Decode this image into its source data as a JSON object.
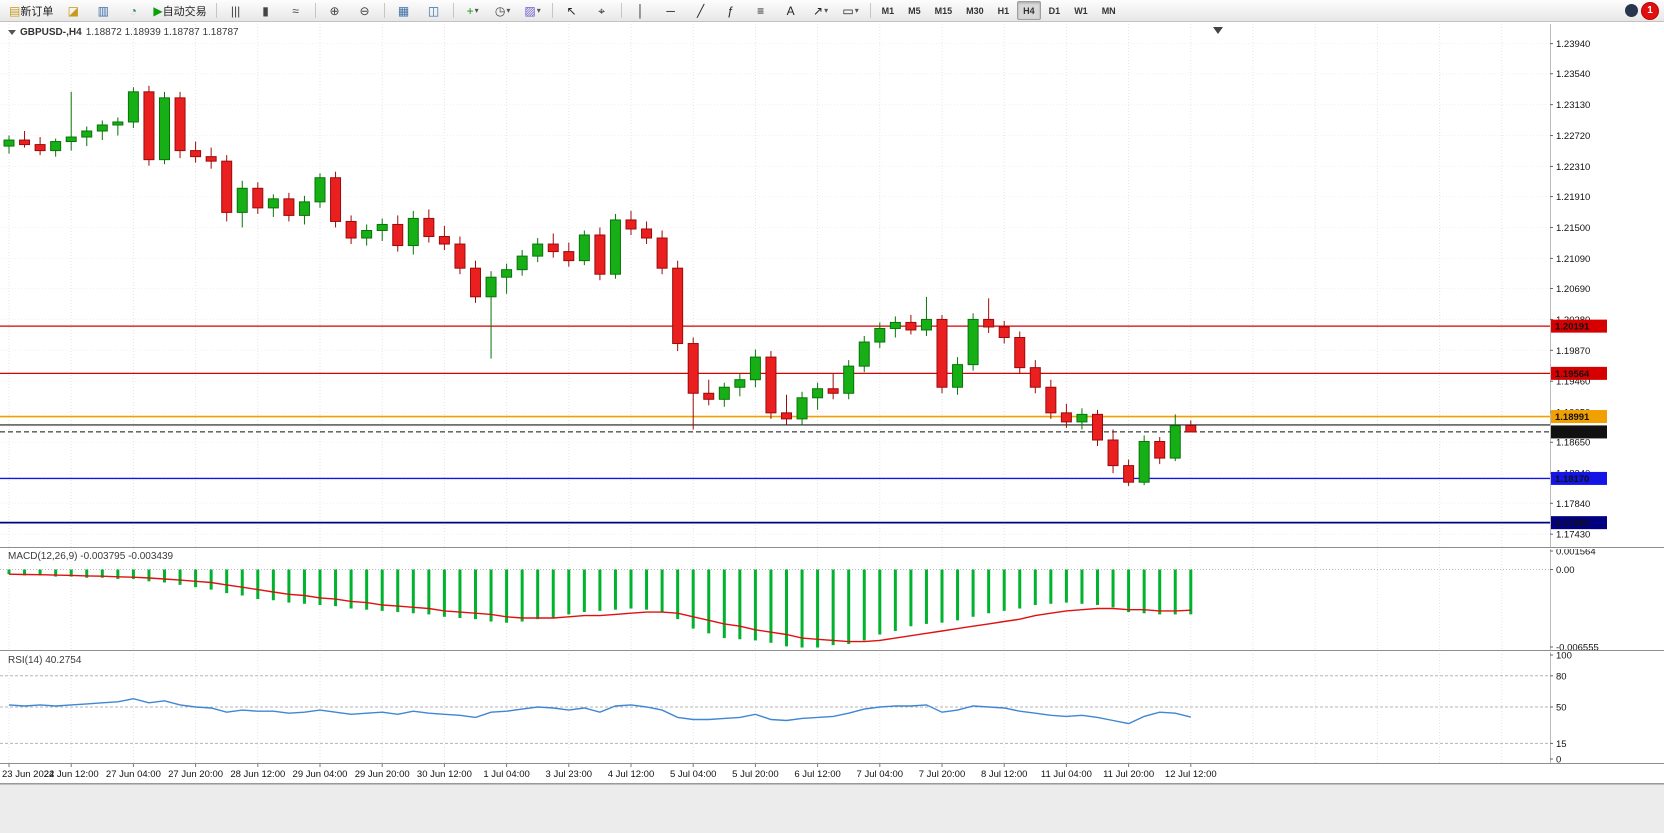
{
  "toolbar": {
    "new_order": {
      "id": "new-order",
      "label": "新订单",
      "glyph": "▤",
      "color": "#c89a18"
    },
    "auto_trading": {
      "id": "auto-trading",
      "label": "自动交易",
      "glyph": "▶",
      "color": "#0aa00a"
    },
    "dropdown_glyph": "▾",
    "icon_groups": [
      [
        {
          "id": "profiles",
          "glyph": "◪",
          "color": "#c89a18"
        },
        {
          "id": "market-watch",
          "glyph": "▥",
          "color": "#3a6ea5"
        },
        {
          "id": "data-window",
          "glyph": "◔",
          "color": "#2e8b57"
        }
      ],
      [
        {
          "id": "bar-chart",
          "glyph": "|||",
          "color": "#444"
        },
        {
          "id": "candlestick-chart",
          "glyph": "▮",
          "color": "#444"
        },
        {
          "id": "line-chart",
          "glyph": "≈",
          "color": "#444"
        }
      ],
      [
        {
          "id": "zoom-in",
          "glyph": "⊕",
          "color": "#444"
        },
        {
          "id": "zoom-out",
          "glyph": "⊖",
          "color": "#444"
        }
      ],
      [
        {
          "id": "tile-windows",
          "glyph": "▦",
          "color": "#3a6ea5"
        },
        {
          "id": "cascade-windows",
          "glyph": "◫",
          "color": "#3a6ea5"
        }
      ],
      [
        {
          "id": "indicators",
          "glyph": "+",
          "color": "#0d9d0d",
          "dropdown": true
        },
        {
          "id": "periods",
          "glyph": "◷",
          "color": "#444",
          "dropdown": true
        },
        {
          "id": "templates",
          "glyph": "▨",
          "color": "#6a5acd",
          "dropdown": true
        }
      ],
      [
        {
          "id": "cursor",
          "glyph": "↖",
          "color": "#222"
        },
        {
          "id": "crosshair",
          "glyph": "⌖",
          "color": "#222"
        }
      ],
      [
        {
          "id": "vertical-line",
          "glyph": "│",
          "color": "#222"
        },
        {
          "id": "horizontal-line",
          "glyph": "─",
          "color": "#222"
        },
        {
          "id": "trendline",
          "glyph": "╱",
          "color": "#222"
        },
        {
          "id": "fibonacci",
          "glyph": "ƒ",
          "color": "#222"
        },
        {
          "id": "channel",
          "glyph": "≡",
          "color": "#222"
        },
        {
          "id": "text-tool",
          "glyph": "A",
          "color": "#222"
        },
        {
          "id": "arrow-tool",
          "glyph": "↗",
          "color": "#222",
          "dropdown": true
        },
        {
          "id": "shapes-tool",
          "glyph": "▭",
          "color": "#222",
          "dropdown": true
        }
      ]
    ],
    "timeframes": [
      "M1",
      "M5",
      "M15",
      "M30",
      "H1",
      "H4",
      "D1",
      "W1",
      "MN"
    ],
    "active_timeframe": "H4",
    "notification": {
      "count": "1",
      "color": "#e01010"
    }
  },
  "chart": {
    "header_symbol": "GBPUSD-,H4",
    "header_ohlc": "1.18872 1.18939 1.18787 1.18787"
  },
  "chart_data": [
    {
      "type": "candlestick",
      "symbol": "GBPUSD-",
      "timeframe": "H4",
      "current_bar": {
        "open": 1.18872,
        "high": 1.18939,
        "low": 1.18787,
        "close": 1.18787
      },
      "ylim": [
        1.1726,
        1.242
      ],
      "price_ticks": [
        1.2394,
        1.2354,
        1.2313,
        1.2272,
        1.2231,
        1.2191,
        1.215,
        1.2109,
        1.2069,
        1.2028,
        1.1987,
        1.1946,
        1.1905,
        1.1865,
        1.1824,
        1.1784,
        1.1743
      ],
      "x_labels": [
        "23 Jun 2022",
        "24 Jun 12:00",
        "27 Jun 04:00",
        "27 Jun 20:00",
        "28 Jun 12:00",
        "29 Jun 04:00",
        "29 Jun 20:00",
        "30 Jun 12:00",
        "1 Jul 04:00",
        "3 Jul 23:00",
        "4 Jul 12:00",
        "5 Jul 04:00",
        "5 Jul 20:00",
        "6 Jul 12:00",
        "7 Jul 04:00",
        "7 Jul 20:00",
        "8 Jul 12:00",
        "11 Jul 04:00",
        "11 Jul 20:00",
        "12 Jul 12:00"
      ],
      "label_step": 4,
      "grid": true,
      "colors": {
        "bull": "#16b016",
        "bull_border": "#077407",
        "bear": "#ea1f1f",
        "bear_border": "#9c0b0b",
        "grid": "#e4e4e4"
      },
      "hlines": [
        {
          "price": 1.20191,
          "label": "1.20191",
          "color": "#d60000",
          "width": 1.2,
          "style": "solid"
        },
        {
          "price": 1.19564,
          "label": "1.19564",
          "color": "#d60000",
          "width": 1.2,
          "style": "solid"
        },
        {
          "price": 1.18991,
          "label": "1.18991",
          "color": "#f0a000",
          "width": 1.7,
          "style": "solid"
        },
        {
          "price": 1.1888,
          "label": "",
          "color": "#1a1a1a",
          "width": 1.1,
          "style": "solid"
        },
        {
          "price": 1.18787,
          "label": "1.18787",
          "color": "#111111",
          "width": 1.0,
          "style": "dashed",
          "current": true
        },
        {
          "price": 1.1817,
          "label": "1.18170",
          "color": "#1414e6",
          "width": 1.3,
          "style": "solid"
        },
        {
          "price": 1.17583,
          "label": "1.17583",
          "color": "#000080",
          "width": 1.7,
          "style": "solid"
        }
      ],
      "candles": [
        [
          1.2258,
          1.2272,
          1.2248,
          1.2266
        ],
        [
          1.2266,
          1.2278,
          1.2256,
          1.226
        ],
        [
          1.226,
          1.227,
          1.2246,
          1.2252
        ],
        [
          1.2252,
          1.2268,
          1.2244,
          1.2264
        ],
        [
          1.2264,
          1.233,
          1.2252,
          1.227
        ],
        [
          1.227,
          1.2284,
          1.2258,
          1.2278
        ],
        [
          1.2278,
          1.2292,
          1.2266,
          1.2286
        ],
        [
          1.2286,
          1.2296,
          1.2272,
          1.229
        ],
        [
          1.229,
          1.2336,
          1.2282,
          1.233
        ],
        [
          1.233,
          1.2338,
          1.2232,
          1.224
        ],
        [
          1.224,
          1.233,
          1.2234,
          1.2322
        ],
        [
          1.2322,
          1.233,
          1.2242,
          1.2252
        ],
        [
          1.2252,
          1.2264,
          1.2236,
          1.2244
        ],
        [
          1.2244,
          1.2256,
          1.2228,
          1.2238
        ],
        [
          1.2238,
          1.2246,
          1.2158,
          1.217
        ],
        [
          1.217,
          1.2212,
          1.215,
          1.2202
        ],
        [
          1.2202,
          1.221,
          1.2168,
          1.2176
        ],
        [
          1.2176,
          1.2194,
          1.2164,
          1.2188
        ],
        [
          1.2188,
          1.2196,
          1.2158,
          1.2166
        ],
        [
          1.2166,
          1.2192,
          1.2154,
          1.2184
        ],
        [
          1.2184,
          1.2222,
          1.2176,
          1.2216
        ],
        [
          1.2216,
          1.2224,
          1.215,
          1.2158
        ],
        [
          1.2158,
          1.2166,
          1.2128,
          1.2136
        ],
        [
          1.2136,
          1.2154,
          1.2126,
          1.2146
        ],
        [
          1.2146,
          1.2162,
          1.2132,
          1.2154
        ],
        [
          1.2154,
          1.2166,
          1.2118,
          1.2126
        ],
        [
          1.2126,
          1.2172,
          1.2114,
          1.2162
        ],
        [
          1.2162,
          1.2174,
          1.213,
          1.2138
        ],
        [
          1.2138,
          1.2152,
          1.212,
          1.2128
        ],
        [
          1.2128,
          1.2138,
          1.2088,
          1.2096
        ],
        [
          1.2096,
          1.2106,
          1.205,
          1.2058
        ],
        [
          1.2058,
          1.2092,
          1.1976,
          1.2084
        ],
        [
          1.2084,
          1.2102,
          1.2062,
          1.2094
        ],
        [
          1.2094,
          1.212,
          1.2086,
          1.2112
        ],
        [
          1.2112,
          1.2136,
          1.2104,
          1.2128
        ],
        [
          1.2128,
          1.2142,
          1.211,
          1.2118
        ],
        [
          1.2118,
          1.213,
          1.2098,
          1.2106
        ],
        [
          1.2106,
          1.2146,
          1.21,
          1.214
        ],
        [
          1.214,
          1.215,
          1.208,
          1.2088
        ],
        [
          1.2088,
          1.2168,
          1.2082,
          1.216
        ],
        [
          1.216,
          1.2172,
          1.214,
          1.2148
        ],
        [
          1.2148,
          1.2158,
          1.2128,
          1.2136
        ],
        [
          1.2136,
          1.2146,
          1.2088,
          1.2096
        ],
        [
          1.2096,
          1.2106,
          1.1986,
          1.1996
        ],
        [
          1.1996,
          1.2004,
          1.1882,
          1.193
        ],
        [
          1.193,
          1.1948,
          1.1914,
          1.1922
        ],
        [
          1.1922,
          1.1944,
          1.1912,
          1.1938
        ],
        [
          1.1938,
          1.1956,
          1.1926,
          1.1948
        ],
        [
          1.1948,
          1.1988,
          1.1938,
          1.1978
        ],
        [
          1.1978,
          1.1986,
          1.1896,
          1.1904
        ],
        [
          1.1904,
          1.1928,
          1.1888,
          1.1896
        ],
        [
          1.1896,
          1.1932,
          1.1888,
          1.1924
        ],
        [
          1.1924,
          1.1944,
          1.1908,
          1.1936
        ],
        [
          1.1936,
          1.1956,
          1.1922,
          1.193
        ],
        [
          1.193,
          1.1974,
          1.1922,
          1.1966
        ],
        [
          1.1966,
          1.2006,
          1.1958,
          1.1998
        ],
        [
          1.1998,
          1.2024,
          1.199,
          1.2016
        ],
        [
          1.2016,
          1.2032,
          1.2004,
          1.2024
        ],
        [
          1.2024,
          1.2034,
          1.2008,
          1.2014
        ],
        [
          1.2014,
          1.2058,
          1.2006,
          1.2028
        ],
        [
          1.2028,
          1.2034,
          1.193,
          1.1938
        ],
        [
          1.1938,
          1.1978,
          1.1928,
          1.1968
        ],
        [
          1.1968,
          1.2036,
          1.196,
          1.2028
        ],
        [
          1.2028,
          1.2056,
          1.201,
          1.2018
        ],
        [
          1.2018,
          1.2026,
          1.1996,
          1.2004
        ],
        [
          1.2004,
          1.2012,
          1.1956,
          1.1964
        ],
        [
          1.1964,
          1.1974,
          1.193,
          1.1938
        ],
        [
          1.1938,
          1.1948,
          1.1896,
          1.1904
        ],
        [
          1.1904,
          1.1916,
          1.1884,
          1.1892
        ],
        [
          1.1892,
          1.191,
          1.1882,
          1.1902
        ],
        [
          1.1902,
          1.1908,
          1.186,
          1.1868
        ],
        [
          1.1868,
          1.1882,
          1.1824,
          1.1834
        ],
        [
          1.1834,
          1.1842,
          1.1807,
          1.1812
        ],
        [
          1.1812,
          1.1874,
          1.1808,
          1.1866
        ],
        [
          1.1866,
          1.1872,
          1.1836,
          1.1844
        ],
        [
          1.1844,
          1.1902,
          1.184,
          1.1887
        ],
        [
          1.18872,
          1.18939,
          1.18787,
          1.18787
        ]
      ]
    },
    {
      "type": "macd",
      "label": "MACD(12,26,9) -0.003795 -0.003439",
      "ylim": [
        -0.006555,
        0.001564
      ],
      "axis_ticks": [
        {
          "v": 0.001564,
          "label": "0.001564"
        },
        {
          "v": 0,
          "label": "0.00"
        },
        {
          "v": -0.006555,
          "label": "-0.006555"
        }
      ],
      "colors": {
        "histogram": "#00b22d",
        "signal": "#e01010"
      },
      "values_main": [
        -0.0004,
        -0.0005,
        -0.0005,
        -0.0006,
        -0.0006,
        -0.0007,
        -0.0007,
        -0.0008,
        -0.0008,
        -0.001,
        -0.0011,
        -0.0013,
        -0.0015,
        -0.0017,
        -0.002,
        -0.0022,
        -0.0025,
        -0.0026,
        -0.0028,
        -0.0029,
        -0.003,
        -0.0031,
        -0.0033,
        -0.0034,
        -0.0035,
        -0.0036,
        -0.0037,
        -0.0038,
        -0.004,
        -0.0041,
        -0.0042,
        -0.0044,
        -0.0045,
        -0.0044,
        -0.0042,
        -0.0041,
        -0.0038,
        -0.0036,
        -0.0035,
        -0.0034,
        -0.0033,
        -0.0034,
        -0.0036,
        -0.0042,
        -0.005,
        -0.0054,
        -0.0058,
        -0.0059,
        -0.006,
        -0.0062,
        -0.0065,
        -0.0066,
        -0.0066,
        -0.0064,
        -0.0063,
        -0.006,
        -0.0055,
        -0.0052,
        -0.0048,
        -0.0046,
        -0.0045,
        -0.0043,
        -0.004,
        -0.0037,
        -0.0035,
        -0.0033,
        -0.003,
        -0.0029,
        -0.0028,
        -0.0029,
        -0.003,
        -0.0032,
        -0.0036,
        -0.0037,
        -0.0038,
        -0.0038,
        -0.003795
      ],
      "values_signal": [
        -0.0004,
        -0.00042,
        -0.00044,
        -0.00047,
        -0.0005,
        -0.00054,
        -0.00057,
        -0.00062,
        -0.00065,
        -0.00072,
        -0.0008,
        -0.0009,
        -0.001,
        -0.0011,
        -0.0013,
        -0.0015,
        -0.0017,
        -0.0019,
        -0.0021,
        -0.0022,
        -0.0024,
        -0.0025,
        -0.0027,
        -0.0028,
        -0.003,
        -0.0031,
        -0.0032,
        -0.0033,
        -0.0035,
        -0.0036,
        -0.0037,
        -0.0038,
        -0.004,
        -0.0041,
        -0.0041,
        -0.0041,
        -0.004,
        -0.0039,
        -0.0039,
        -0.0038,
        -0.0037,
        -0.0036,
        -0.0036,
        -0.0037,
        -0.004,
        -0.0043,
        -0.0046,
        -0.0048,
        -0.0051,
        -0.0053,
        -0.0055,
        -0.0058,
        -0.0059,
        -0.006,
        -0.0061,
        -0.0061,
        -0.006,
        -0.0058,
        -0.0056,
        -0.0054,
        -0.0052,
        -0.005,
        -0.0048,
        -0.0046,
        -0.0044,
        -0.0042,
        -0.0039,
        -0.0037,
        -0.0035,
        -0.0034,
        -0.0033,
        -0.0033,
        -0.0034,
        -0.0034,
        -0.0035,
        -0.0035,
        -0.003439
      ]
    },
    {
      "type": "rsi",
      "label": "RSI(14) 40.2754",
      "ylim": [
        0,
        100
      ],
      "levels": [
        80,
        50,
        15
      ],
      "axis_ticks": [
        {
          "v": 100,
          "label": "100"
        },
        {
          "v": 80,
          "label": "80"
        },
        {
          "v": 50,
          "label": "50"
        },
        {
          "v": 15,
          "label": "15"
        },
        {
          "v": 0,
          "label": "0"
        }
      ],
      "color": "#3f86d4",
      "values": [
        52,
        51,
        52,
        51,
        52,
        53,
        54,
        55,
        58,
        54,
        56,
        52,
        50,
        49,
        45,
        47,
        46,
        46,
        44,
        45,
        47,
        45,
        43,
        44,
        45,
        43,
        46,
        44,
        43,
        42,
        40,
        45,
        46,
        48,
        50,
        49,
        47,
        49,
        45,
        51,
        52,
        50,
        47,
        40,
        38,
        38,
        39,
        40,
        43,
        38,
        37,
        39,
        40,
        41,
        44,
        48,
        50,
        51,
        51,
        52,
        45,
        47,
        51,
        50,
        49,
        46,
        44,
        42,
        41,
        42,
        40,
        37,
        34,
        41,
        45,
        44,
        40.2754
      ]
    }
  ]
}
